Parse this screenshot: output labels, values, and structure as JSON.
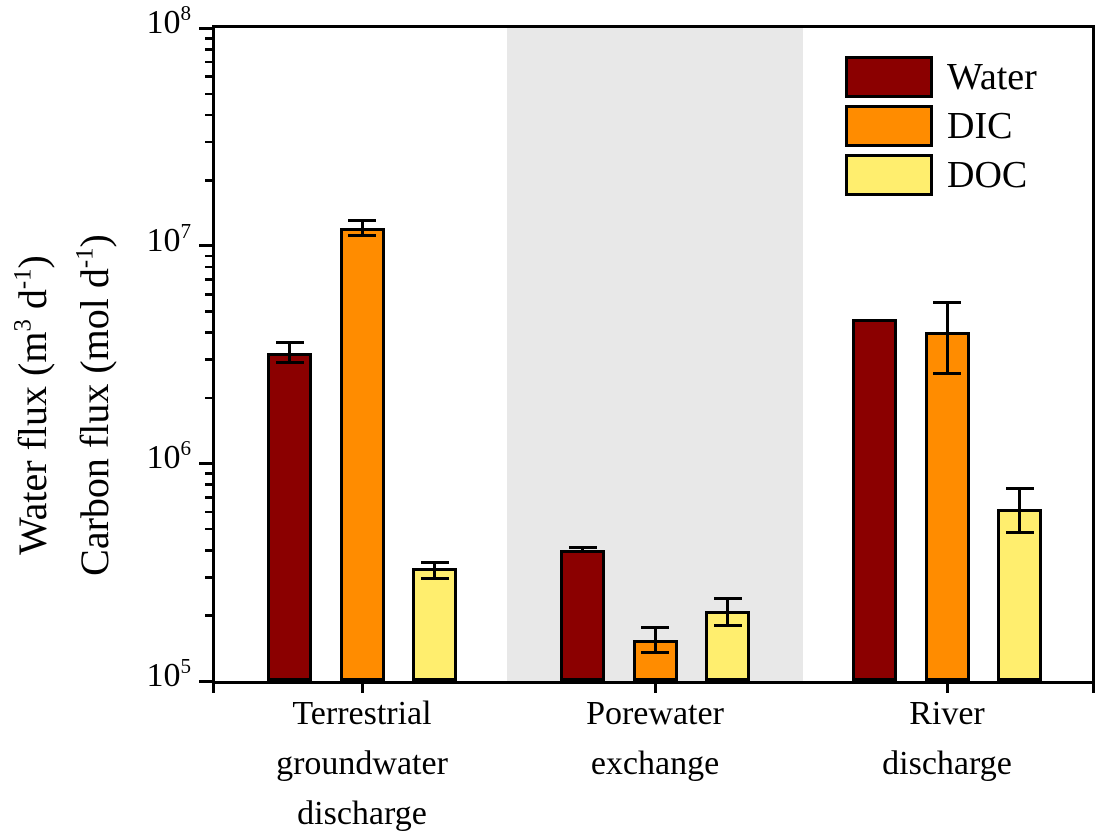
{
  "figure": {
    "background": "#FFFFFF",
    "frame_color": "#000000",
    "text_color": "#000000"
  },
  "chart_data": {
    "type": "bar",
    "scale": "log",
    "ylim": [
      100000,
      100000000
    ],
    "y_tick_base": "10",
    "y_tick_exponents": [
      5,
      6,
      7,
      8
    ],
    "grid": false,
    "title": "",
    "xlabel": "",
    "ylabel_lines": [
      {
        "segments": [
          {
            "t": "Water flux (m"
          },
          {
            "t": "3",
            "sup": true
          },
          {
            "t": " d"
          },
          {
            "t": "-1",
            "sup": true
          },
          {
            "t": ")"
          }
        ]
      },
      {
        "segments": [
          {
            "t": "Carbon flux (mol d"
          },
          {
            "t": "-1",
            "sup": true
          },
          {
            "t": ")"
          }
        ]
      }
    ],
    "categories": [
      "Terrestrial groundwater discharge",
      "Porewater exchange",
      "River discharge"
    ],
    "category_lines": [
      [
        "Terrestrial",
        "groundwater",
        "discharge"
      ],
      [
        "Porewater",
        "exchange"
      ],
      [
        "River",
        "discharge"
      ]
    ],
    "series": [
      {
        "name": "Water",
        "color": "#8B0000",
        "values": [
          3200000,
          400000,
          4600000
        ],
        "err_low": [
          2900000,
          393000,
          null
        ],
        "err_high": [
          3600000,
          412000,
          null
        ]
      },
      {
        "name": "DIC",
        "color": "#FF8C00",
        "values": [
          12000000,
          155000,
          4000000
        ],
        "err_low": [
          11100000,
          135000,
          2600000
        ],
        "err_high": [
          13100000,
          177000,
          5500000
        ]
      },
      {
        "name": "DOC",
        "color": "#FFEE6E",
        "values": [
          330000,
          210000,
          620000
        ],
        "err_low": [
          295000,
          180000,
          480000
        ],
        "err_high": [
          350000,
          240000,
          770000
        ]
      }
    ],
    "highlight_band": {
      "category": "Porewater exchange",
      "category_index": 1,
      "color": "#E8E8E8"
    },
    "legend": {
      "position": "top-right",
      "items": [
        {
          "label": "Water",
          "color": "#8B0000"
        },
        {
          "label": "DIC",
          "color": "#FF8C00"
        },
        {
          "label": "DOC",
          "color": "#FFEE6E"
        }
      ]
    }
  }
}
